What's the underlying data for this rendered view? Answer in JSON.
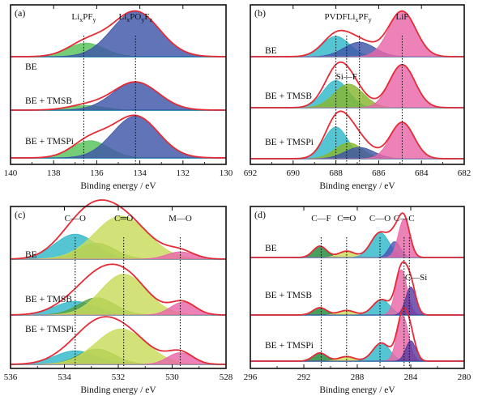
{
  "chart_data": [
    {
      "type": "area",
      "panel_label": "(a)",
      "xlabel": "Binding energy / eV",
      "xlim": [
        140,
        130
      ],
      "x_ticks": [
        140,
        138,
        136,
        134,
        132,
        130
      ],
      "rows": [
        "BE",
        "BE + TMSB",
        "BE + TMSPi"
      ],
      "peak_labels": [
        {
          "main": "Li",
          "sub": [
            "x",
            "y"
          ],
          "parts": [
            "Li",
            "x",
            "PF",
            "y"
          ],
          "text": "LixPFy",
          "x": 136.6
        },
        {
          "main": "Li",
          "text": "LixPOyFz",
          "parts": [
            "Li",
            "x",
            "PO",
            "y",
            "F",
            "z"
          ],
          "x": 134.2
        }
      ],
      "dotted_lines": [
        136.6,
        134.2
      ],
      "components": {
        "BE": [
          {
            "name": "LixPFy",
            "center": 136.5,
            "fwhm": 2.0,
            "height": 0.3,
            "color": "#57c25a"
          },
          {
            "name": "LixPOyFz",
            "center": 134.2,
            "fwhm": 2.6,
            "height": 1.0,
            "color": "#3f55a8"
          }
        ],
        "BE + TMSB": [
          {
            "name": "LixPFy",
            "center": 136.5,
            "fwhm": 2.0,
            "height": 0.1,
            "color": "#57c25a"
          },
          {
            "name": "LixPOyFz",
            "center": 134.2,
            "fwhm": 2.5,
            "height": 0.62,
            "color": "#3f55a8"
          }
        ],
        "BE + TMSPi": [
          {
            "name": "LixPFy",
            "center": 136.3,
            "fwhm": 2.0,
            "height": 0.38,
            "color": "#57c25a"
          },
          {
            "name": "LixPOyFz",
            "center": 134.2,
            "fwhm": 2.5,
            "height": 0.92,
            "color": "#3f55a8"
          }
        ]
      }
    },
    {
      "type": "area",
      "panel_label": "(b)",
      "xlabel": "Binding energy / eV",
      "xlim": [
        692,
        682
      ],
      "x_ticks": [
        692,
        690,
        688,
        686,
        684,
        682
      ],
      "rows": [
        "BE",
        "BE + TMSB",
        "BE + TMSPi"
      ],
      "peak_labels": [
        {
          "text": "PVDF",
          "x": 688.0
        },
        {
          "text": "LixPFy",
          "parts": [
            "Li",
            "x",
            "PF",
            "y"
          ],
          "x": 686.9
        },
        {
          "text": "LiF",
          "x": 684.9
        },
        {
          "text": "Si—F",
          "x": 687.5,
          "row": 1
        }
      ],
      "dotted_lines": [
        688.0,
        687.5,
        686.9,
        684.9
      ],
      "components": {
        "BE": [
          {
            "name": "PVDF",
            "center": 688.0,
            "fwhm": 1.5,
            "height": 0.45,
            "color": "#2fb8c9"
          },
          {
            "name": "LixPFy",
            "center": 686.9,
            "fwhm": 1.7,
            "height": 0.32,
            "color": "#3f55a8"
          },
          {
            "name": "LiF",
            "center": 684.9,
            "fwhm": 1.5,
            "height": 1.0,
            "color": "#e867a7"
          }
        ],
        "BE + TMSB": [
          {
            "name": "PVDF",
            "center": 688.0,
            "fwhm": 1.4,
            "height": 0.6,
            "color": "#2fb8c9"
          },
          {
            "name": "Si—F",
            "center": 687.4,
            "fwhm": 1.6,
            "height": 0.52,
            "color": "#87b62e"
          },
          {
            "name": "LiF",
            "center": 684.9,
            "fwhm": 1.4,
            "height": 0.95,
            "color": "#e867a7"
          }
        ],
        "BE + TMSPi": [
          {
            "name": "PVDF",
            "center": 688.0,
            "fwhm": 1.3,
            "height": 0.7,
            "color": "#2fb8c9"
          },
          {
            "name": "Si—F",
            "center": 687.4,
            "fwhm": 1.5,
            "height": 0.35,
            "color": "#87b62e"
          },
          {
            "name": "LixPFy",
            "center": 686.9,
            "fwhm": 1.6,
            "height": 0.25,
            "color": "#3f55a8"
          },
          {
            "name": "LiF",
            "center": 684.9,
            "fwhm": 1.3,
            "height": 0.8,
            "color": "#e867a7"
          }
        ]
      }
    },
    {
      "type": "area",
      "panel_label": "(c)",
      "xlabel": "Binding energy / eV",
      "xlim": [
        536,
        528
      ],
      "x_ticks": [
        536,
        534,
        532,
        530,
        528
      ],
      "rows": [
        "BE",
        "BE + TMSB",
        "BE + TMSPi"
      ],
      "peak_labels": [
        {
          "text": "C—O",
          "x": 533.6
        },
        {
          "text": "C═O",
          "x": 531.8
        },
        {
          "text": "M—O",
          "x": 529.7
        }
      ],
      "dotted_lines": [
        533.6,
        531.8,
        529.7
      ],
      "components": {
        "BE": [
          {
            "name": "C—O",
            "center": 533.6,
            "fwhm": 1.8,
            "height": 0.55,
            "color": "#2fb8c9"
          },
          {
            "name": "C—O2",
            "center": 532.8,
            "fwhm": 1.6,
            "height": 0.35,
            "color": "#57a046"
          },
          {
            "name": "C═O",
            "center": 531.9,
            "fwhm": 2.3,
            "height": 0.95,
            "color": "#c9dc5a"
          },
          {
            "name": "M—O",
            "center": 529.7,
            "fwhm": 1.2,
            "height": 0.16,
            "color": "#e867a7"
          }
        ],
        "BE + TMSB": [
          {
            "name": "C—O",
            "center": 533.6,
            "fwhm": 1.8,
            "height": 0.3,
            "color": "#2fb8c9"
          },
          {
            "name": "C—O2",
            "center": 532.8,
            "fwhm": 1.6,
            "height": 0.38,
            "color": "#57a046"
          },
          {
            "name": "C═O",
            "center": 531.8,
            "fwhm": 2.0,
            "height": 0.9,
            "color": "#c9dc5a"
          },
          {
            "name": "M—O",
            "center": 529.6,
            "fwhm": 1.1,
            "height": 0.28,
            "color": "#e867a7"
          }
        ],
        "BE + TMSPi": [
          {
            "name": "C—O",
            "center": 533.6,
            "fwhm": 1.8,
            "height": 0.3,
            "color": "#2fb8c9"
          },
          {
            "name": "C—O2",
            "center": 532.8,
            "fwhm": 1.6,
            "height": 0.34,
            "color": "#57a046"
          },
          {
            "name": "C═O",
            "center": 531.9,
            "fwhm": 2.2,
            "height": 0.78,
            "color": "#c9dc5a"
          },
          {
            "name": "M—O",
            "center": 529.7,
            "fwhm": 1.1,
            "height": 0.26,
            "color": "#e867a7"
          }
        ]
      }
    },
    {
      "type": "area",
      "panel_label": "(d)",
      "xlabel": "Binding energy / eV",
      "xlim": [
        296,
        280
      ],
      "x_ticks": [
        296,
        292,
        288,
        284,
        280
      ],
      "rows": [
        "BE",
        "BE + TMSB",
        "BE + TMSPi"
      ],
      "peak_labels": [
        {
          "text": "C—F",
          "x": 290.7
        },
        {
          "text": "C═O",
          "x": 288.8
        },
        {
          "text": "C—O",
          "x": 286.3
        },
        {
          "text": "C—C",
          "x": 284.5
        },
        {
          "text": "C—Si",
          "x": 283.6,
          "row": 1
        }
      ],
      "dotted_lines": [
        290.7,
        288.8,
        286.3,
        284.5,
        284.1
      ],
      "components": {
        "BE": [
          {
            "name": "C—F",
            "center": 290.8,
            "fwhm": 1.2,
            "height": 0.25,
            "color": "#1f8a3a"
          },
          {
            "name": "C═O",
            "center": 288.8,
            "fwhm": 1.4,
            "height": 0.14,
            "color": "#c9dc5a"
          },
          {
            "name": "C—O",
            "center": 286.3,
            "fwhm": 1.6,
            "height": 0.55,
            "color": "#2fb8c9"
          },
          {
            "name": "C—C2",
            "center": 285.2,
            "fwhm": 1.0,
            "height": 0.35,
            "color": "#4b55b8"
          },
          {
            "name": "C—C",
            "center": 284.5,
            "fwhm": 1.0,
            "height": 0.85,
            "color": "#e867a7"
          }
        ],
        "BE + TMSB": [
          {
            "name": "C—F",
            "center": 290.8,
            "fwhm": 1.2,
            "height": 0.16,
            "color": "#1f8a3a"
          },
          {
            "name": "C═O",
            "center": 288.8,
            "fwhm": 1.4,
            "height": 0.1,
            "color": "#c9dc5a"
          },
          {
            "name": "C—O",
            "center": 286.2,
            "fwhm": 1.5,
            "height": 0.34,
            "color": "#2fb8c9"
          },
          {
            "name": "C—C",
            "center": 284.7,
            "fwhm": 1.0,
            "height": 1.0,
            "color": "#e867a7"
          },
          {
            "name": "C—Si",
            "center": 284.0,
            "fwhm": 0.9,
            "height": 0.62,
            "color": "#5b3aa0"
          }
        ],
        "BE + TMSPi": [
          {
            "name": "C—F",
            "center": 290.8,
            "fwhm": 1.2,
            "height": 0.18,
            "color": "#1f8a3a"
          },
          {
            "name": "C═O",
            "center": 288.8,
            "fwhm": 1.4,
            "height": 0.1,
            "color": "#c9dc5a"
          },
          {
            "name": "C—O",
            "center": 286.2,
            "fwhm": 1.5,
            "height": 0.4,
            "color": "#2fb8c9"
          },
          {
            "name": "C—C",
            "center": 284.6,
            "fwhm": 1.0,
            "height": 1.0,
            "color": "#e867a7"
          },
          {
            "name": "C—Si",
            "center": 284.0,
            "fwhm": 0.9,
            "height": 0.45,
            "color": "#5b3aa0"
          }
        ]
      }
    }
  ]
}
